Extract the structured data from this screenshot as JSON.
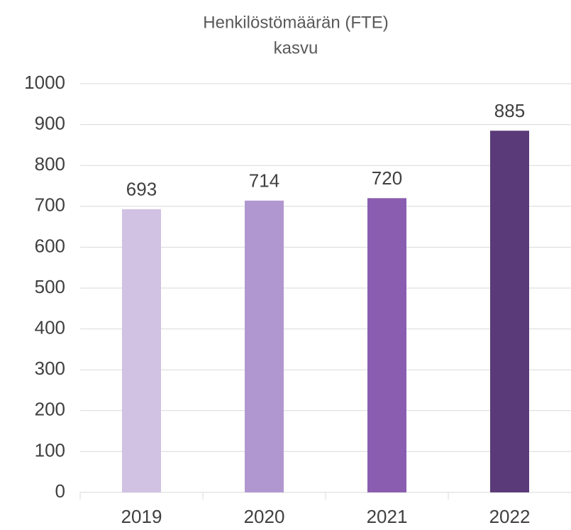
{
  "chart_data": {
    "type": "bar",
    "title": [
      "Henkilöstömäärän (FTE)",
      "kasvu"
    ],
    "categories": [
      "2019",
      "2020",
      "2021",
      "2022"
    ],
    "values": [
      693,
      714,
      720,
      885
    ],
    "colors": [
      "#d1c1e3",
      "#b197cf",
      "#8a5db0",
      "#5a3a78"
    ],
    "ylim": [
      0,
      1000
    ],
    "yticks": [
      0,
      100,
      200,
      300,
      400,
      500,
      600,
      700,
      800,
      900,
      1000
    ],
    "grid": true
  }
}
